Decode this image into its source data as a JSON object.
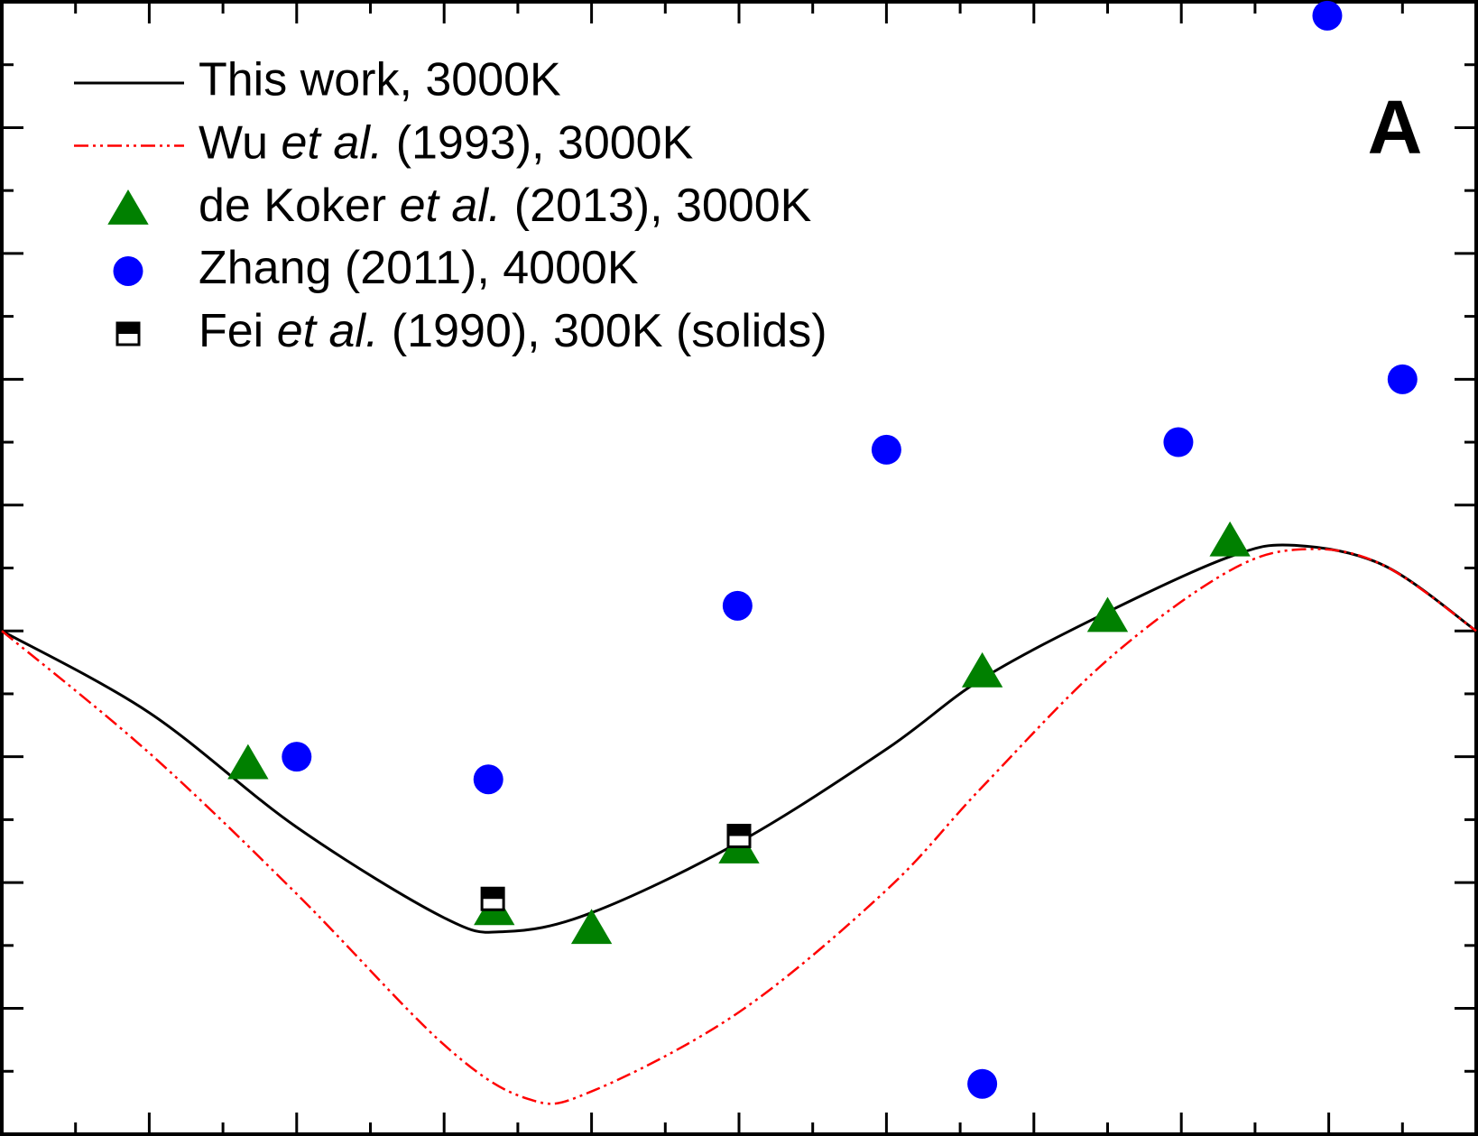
{
  "chart_data": {
    "type": "line",
    "annotation": "A",
    "xlim": [
      0,
      10
    ],
    "ylim": [
      0,
      9
    ],
    "xticks": [
      0,
      0.5,
      1,
      1.5,
      2,
      2.5,
      3,
      3.5,
      4,
      4.5,
      5,
      5.5,
      6,
      6.5,
      7,
      7.5,
      8,
      8.5,
      9,
      9.5,
      10
    ],
    "yticks": [
      0,
      0.5,
      1,
      1.5,
      2,
      2.5,
      3,
      3.5,
      4,
      4.5,
      5,
      5.5,
      6,
      6.5,
      7,
      7.5,
      8,
      8.5,
      9
    ],
    "legend": "upper left",
    "series": [
      {
        "name": "This work, 3000K",
        "kind": "line",
        "dash": "solid",
        "color": "#000000",
        "x": [
          0,
          1,
          2,
          3,
          3.41,
          4,
          5,
          6,
          6.65,
          7.5,
          8.33,
          8.77,
          9.375,
          10
        ],
        "values": [
          4.0,
          3.35,
          2.44,
          1.72,
          1.61,
          1.76,
          2.32,
          3.06,
          3.62,
          4.15,
          4.59,
          4.68,
          4.52,
          4.0
        ]
      },
      {
        "name": "Wu et al. (1993), 3000K",
        "italic": "et al.",
        "kind": "line",
        "dash": "dashdotdot",
        "color": "#ff0000",
        "x": [
          0,
          1,
          2,
          3,
          3.57,
          4,
          5,
          6,
          6.65,
          7.5,
          8.33,
          8.86,
          9.375,
          10
        ],
        "values": [
          4.0,
          3.03,
          1.91,
          0.71,
          0.28,
          0.34,
          0.97,
          1.94,
          2.76,
          3.77,
          4.48,
          4.65,
          4.52,
          4.0
        ]
      },
      {
        "name": "de Koker et al. (2013), 3000K",
        "italic": "et al.",
        "kind": "scatter",
        "marker": "triangle",
        "color": "#008000",
        "x": [
          1.67,
          3.34,
          4.0,
          5.0,
          6.65,
          7.5,
          8.33
        ],
        "values": [
          2.95,
          1.79,
          1.64,
          2.28,
          3.68,
          4.12,
          4.72
        ]
      },
      {
        "name": "Zhang (2011), 4000K",
        "kind": "scatter",
        "marker": "circle",
        "color": "#0000ff",
        "x": [
          8.99,
          9.5,
          6.0,
          7.98,
          4.99,
          2.0,
          3.3,
          6.65
        ],
        "values": [
          8.89,
          6.0,
          5.44,
          5.5,
          4.2,
          3.0,
          2.82,
          0.4
        ]
      },
      {
        "name": "Fei et al. (1990), 300K (solids)",
        "italic": "et al.",
        "kind": "scatter",
        "marker": "half-square",
        "color": "#000000",
        "x": [
          3.33,
          5.0
        ],
        "values": [
          1.87,
          2.37
        ]
      }
    ]
  }
}
